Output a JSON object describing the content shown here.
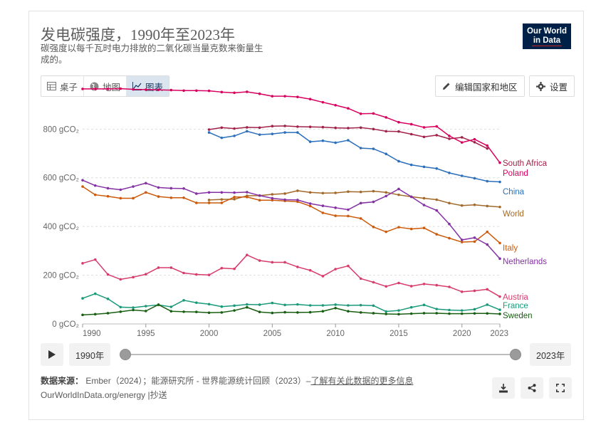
{
  "title": "发电碳强度，1990年至2023年",
  "subtitle": "碳强度以每千瓦时电力排放的二氧化碳当量克数来衡量生成的。",
  "logo": {
    "line1": "Our World",
    "line2": "in Data"
  },
  "tabs": [
    {
      "label": "桌子",
      "icon": "table-icon"
    },
    {
      "label": "地图",
      "icon": "globe-icon"
    },
    {
      "label": "图表",
      "icon": "line-chart-icon",
      "active": true
    }
  ],
  "edit_button": "编辑国家和地区",
  "settings_button": "设置",
  "timeline": {
    "start_label": "1990年",
    "end_label": "2023年"
  },
  "sources": {
    "label": "数据来源：",
    "text": "Ember（2024）；能源研究所 - 世界能源统计回顾（2023）–",
    "link": "了解有关此数据的更多信息"
  },
  "url_line": "OurWorldInData.org/energy |抄送",
  "colors": {
    "accent": "#1d3d63",
    "logo_bg": "#002147",
    "logo_line": "#ce261e"
  },
  "chart_data": {
    "type": "line",
    "title": "发电碳强度，1990年至2023年",
    "xlim": [
      1990,
      2023
    ],
    "ylim": [
      0,
      950
    ],
    "x_ticks": [
      1990,
      1995,
      2000,
      2005,
      2010,
      2015,
      2020,
      2023
    ],
    "y_ticks": [
      {
        "value": 0,
        "label": "0 gCO₂"
      },
      {
        "value": 200,
        "label": "200 gCO₂"
      },
      {
        "value": 400,
        "label": "400 gCO₂"
      },
      {
        "value": 600,
        "label": "600 gCO₂"
      },
      {
        "value": 800,
        "label": "800 gCO₂"
      }
    ],
    "grid": "horizontal-dashed",
    "legend": "right",
    "series": [
      {
        "name": "South Africa",
        "color": "#a2224a",
        "start": 2000,
        "values": [
          798,
          806,
          802,
          807,
          806,
          812,
          813,
          810,
          809,
          808,
          805,
          804,
          806,
          800,
          791,
          790,
          779,
          768,
          775,
          760,
          766,
          746,
          720
        ]
      },
      {
        "name": "Poland",
        "color": "#d7005e",
        "start": 1990,
        "values": [
          965,
          965,
          965,
          966,
          963,
          962,
          961,
          960,
          958,
          958,
          957,
          952,
          949,
          953,
          945,
          935,
          935,
          932,
          923,
          910,
          898,
          885,
          863,
          864,
          848,
          828,
          820,
          807,
          811,
          772,
          745,
          758,
          732,
          662
        ]
      },
      {
        "name": "China",
        "color": "#2c6fbb",
        "start": 2000,
        "values": [
          786,
          764,
          772,
          791,
          777,
          780,
          786,
          786,
          748,
          752,
          744,
          754,
          722,
          719,
          698,
          668,
          653,
          645,
          638,
          620,
          608,
          598,
          586,
          583
        ]
      },
      {
        "name": "World",
        "color": "#a2692a",
        "start": 2000,
        "values": [
          509,
          511,
          512,
          526,
          527,
          532,
          535,
          547,
          540,
          537,
          538,
          543,
          542,
          545,
          540,
          530,
          522,
          516,
          510,
          496,
          486,
          489,
          484,
          480
        ]
      },
      {
        "name": "Italy",
        "color": "#cc5a0a",
        "start": 1990,
        "values": [
          564,
          530,
          524,
          516,
          516,
          540,
          523,
          518,
          518,
          497,
          497,
          497,
          521,
          521,
          508,
          508,
          505,
          502,
          484,
          456,
          444,
          443,
          433,
          398,
          378,
          397,
          390,
          394,
          368,
          352,
          336,
          338,
          378,
          332
        ]
      },
      {
        "name": "Netherlands",
        "color": "#8531a4",
        "start": 1990,
        "values": [
          590,
          568,
          557,
          551,
          564,
          578,
          560,
          557,
          556,
          535,
          540,
          540,
          539,
          541,
          527,
          516,
          510,
          509,
          494,
          485,
          477,
          469,
          496,
          501,
          525,
          554,
          522,
          488,
          466,
          410,
          345,
          354,
          326,
          268
        ]
      },
      {
        "name": "Austria",
        "color": "#d73c6c",
        "start": 1990,
        "values": [
          249,
          264,
          203,
          183,
          192,
          204,
          231,
          231,
          209,
          203,
          201,
          229,
          226,
          283,
          260,
          253,
          253,
          234,
          220,
          196,
          225,
          238,
          186,
          171,
          154,
          168,
          155,
          164,
          159,
          152,
          132,
          136,
          142,
          112
        ]
      },
      {
        "name": "France",
        "color": "#1b9a7a",
        "start": 1990,
        "values": [
          105,
          124,
          103,
          69,
          67,
          73,
          78,
          70,
          97,
          87,
          81,
          71,
          75,
          80,
          79,
          86,
          78,
          80,
          76,
          76,
          79,
          76,
          77,
          75,
          51,
          55,
          68,
          78,
          61,
          57,
          55,
          60,
          79,
          58
        ]
      },
      {
        "name": "Sweden",
        "color": "#195f12",
        "start": 1990,
        "values": [
          37,
          40,
          44,
          50,
          57,
          53,
          79,
          52,
          50,
          49,
          46,
          47,
          55,
          68,
          49,
          45,
          48,
          47,
          48,
          52,
          65,
          52,
          47,
          44,
          41,
          40,
          42,
          44,
          44,
          42,
          42,
          43,
          43,
          41
        ]
      }
    ]
  }
}
